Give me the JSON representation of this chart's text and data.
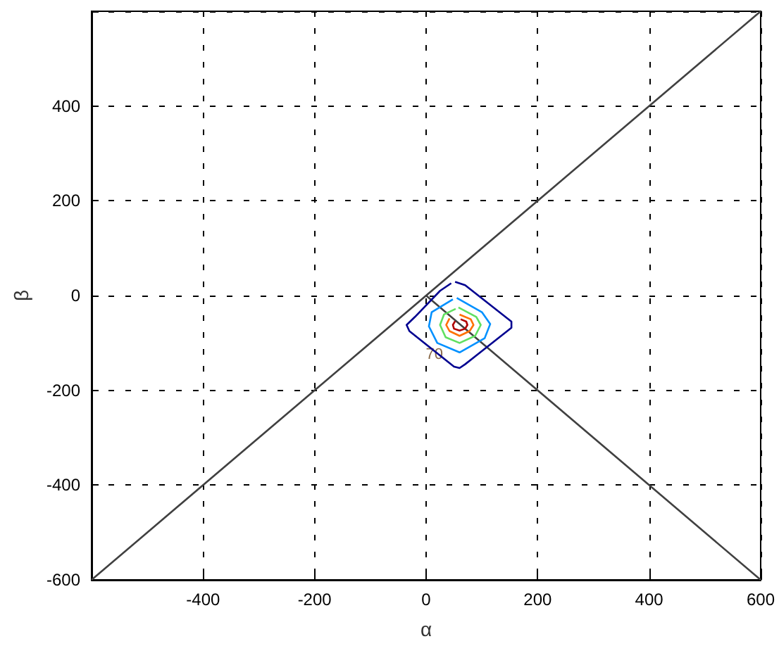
{
  "chart_data": {
    "type": "line",
    "xlabel": "α",
    "ylabel": "β",
    "xlim": [
      -600,
      600
    ],
    "ylim": [
      -600,
      600
    ],
    "xticks": [
      -400,
      -200,
      0,
      200,
      400,
      600
    ],
    "yticks": [
      -600,
      -400,
      -200,
      0,
      200,
      400
    ],
    "grid": true,
    "marker": "none",
    "line_style": "solid",
    "series": [
      {
        "color": "#404040",
        "x": [
          -600,
          600
        ],
        "values": [
          -600,
          600
        ]
      },
      {
        "color": "#404040",
        "x": [
          0,
          600
        ],
        "values": [
          0,
          -600
        ]
      },
      {
        "color": "#000090",
        "x": [
          52,
          70,
          153,
          153,
          70,
          60,
          50,
          -30,
          -35,
          -20,
          25,
          45
        ],
        "values": [
          29,
          22,
          -55,
          -68,
          -145,
          -153,
          -150,
          -75,
          -62,
          -45,
          10,
          26
        ]
      },
      {
        "color": "#0090ff",
        "x": [
          55,
          100,
          115,
          105,
          60,
          20,
          5,
          10,
          48
        ],
        "values": [
          -5,
          -35,
          -60,
          -90,
          -120,
          -100,
          -65,
          -35,
          -8
        ]
      },
      {
        "color": "#60e060",
        "x": [
          58,
          90,
          98,
          88,
          60,
          35,
          25,
          32,
          53
        ],
        "values": [
          -25,
          -45,
          -62,
          -85,
          -100,
          -88,
          -62,
          -40,
          -28
        ]
      },
      {
        "color": "#ff7000",
        "x": [
          60,
          80,
          85,
          78,
          60,
          42,
          36,
          42
        ],
        "values": [
          -40,
          -50,
          -62,
          -75,
          -85,
          -75,
          -62,
          -48
        ]
      },
      {
        "color": "#b00000",
        "x": [
          62,
          72,
          74,
          70,
          60,
          50,
          48,
          52
        ],
        "values": [
          -50,
          -55,
          -62,
          -70,
          -74,
          -70,
          -62,
          -54
        ]
      }
    ],
    "annotations": [
      {
        "text": "70",
        "x": 15,
        "y": -125
      }
    ]
  }
}
